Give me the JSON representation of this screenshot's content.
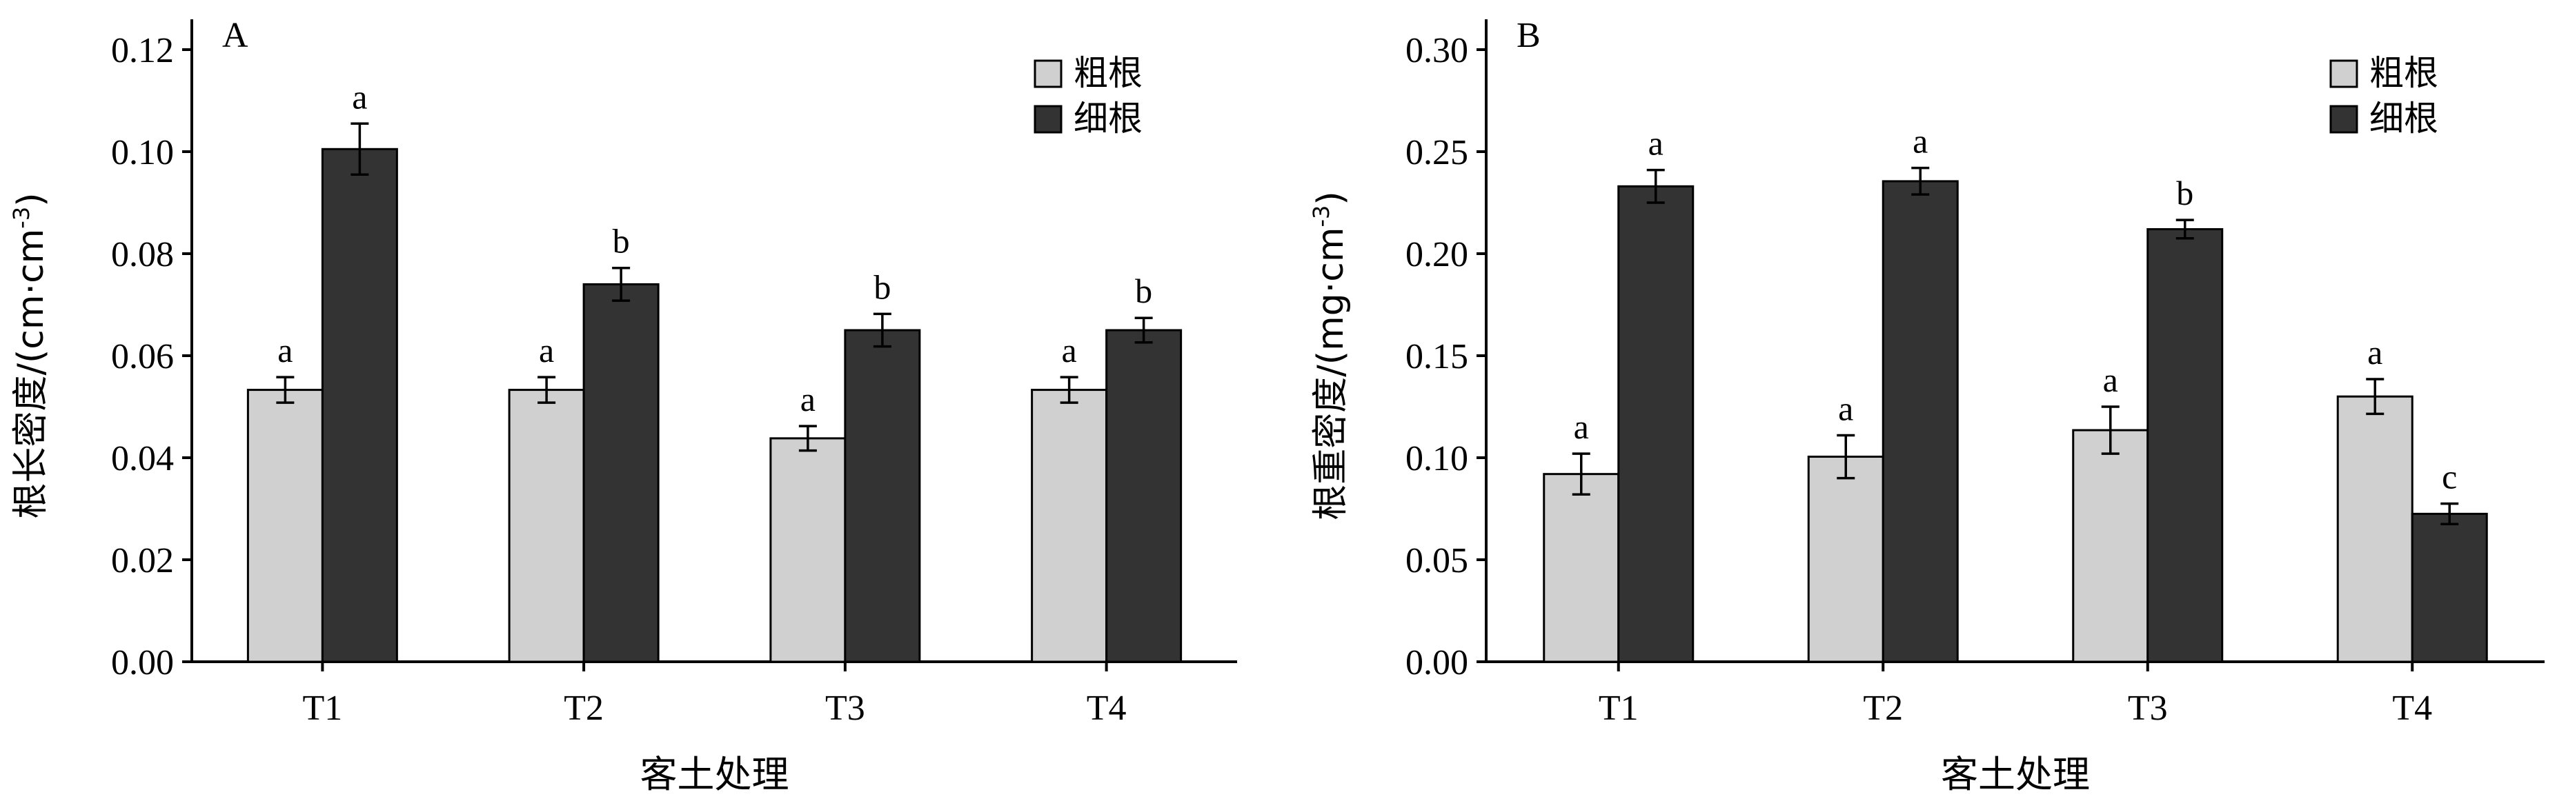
{
  "chart_data": [
    {
      "type": "bar",
      "panel_label": "A",
      "categories": [
        "T1",
        "T2",
        "T3",
        "T4"
      ],
      "series": [
        {
          "name": "粗根",
          "values": [
            0.0533,
            0.0533,
            0.0438,
            0.0533
          ],
          "errors": [
            0.0025,
            0.0025,
            0.0024,
            0.0025
          ],
          "letters": [
            "a",
            "a",
            "a",
            "a"
          ]
        },
        {
          "name": "细根",
          "values": [
            0.1005,
            0.074,
            0.065,
            0.065
          ],
          "errors": [
            0.005,
            0.0032,
            0.0032,
            0.0024
          ],
          "letters": [
            "a",
            "b",
            "b",
            "b"
          ]
        }
      ],
      "xlabel": "客土处理",
      "ylabel": "根长密度/(cm·cm",
      "ylabel_sup": "-3",
      "ylabel_end": ")",
      "ylim": [
        0,
        0.12
      ],
      "yticks": [
        "0.00",
        "0.02",
        "0.04",
        "0.06",
        "0.08",
        "0.10",
        "0.12"
      ],
      "legend_position": "top-right",
      "grid": false
    },
    {
      "type": "bar",
      "panel_label": "B",
      "categories": [
        "T1",
        "T2",
        "T3",
        "T4"
      ],
      "series": [
        {
          "name": "粗根",
          "values": [
            0.092,
            0.1005,
            0.1135,
            0.13
          ],
          "errors": [
            0.01,
            0.0105,
            0.0115,
            0.0085
          ],
          "letters": [
            "a",
            "a",
            "a",
            "a"
          ]
        },
        {
          "name": "细根",
          "values": [
            0.233,
            0.2355,
            0.212,
            0.0725
          ],
          "errors": [
            0.008,
            0.0065,
            0.0045,
            0.005
          ],
          "letters": [
            "a",
            "a",
            "b",
            "c"
          ]
        }
      ],
      "xlabel": "客土处理",
      "ylabel": "根重密度/(mg·cm",
      "ylabel_sup": "-3",
      "ylabel_end": ")",
      "ylim": [
        0,
        0.3
      ],
      "yticks": [
        "0.00",
        "0.05",
        "0.10",
        "0.15",
        "0.20",
        "0.25",
        "0.30"
      ],
      "legend_position": "top-right",
      "grid": false
    }
  ],
  "colors": {
    "coarse": "#d0d0d0",
    "fine": "#333333",
    "axis": "#000000"
  }
}
